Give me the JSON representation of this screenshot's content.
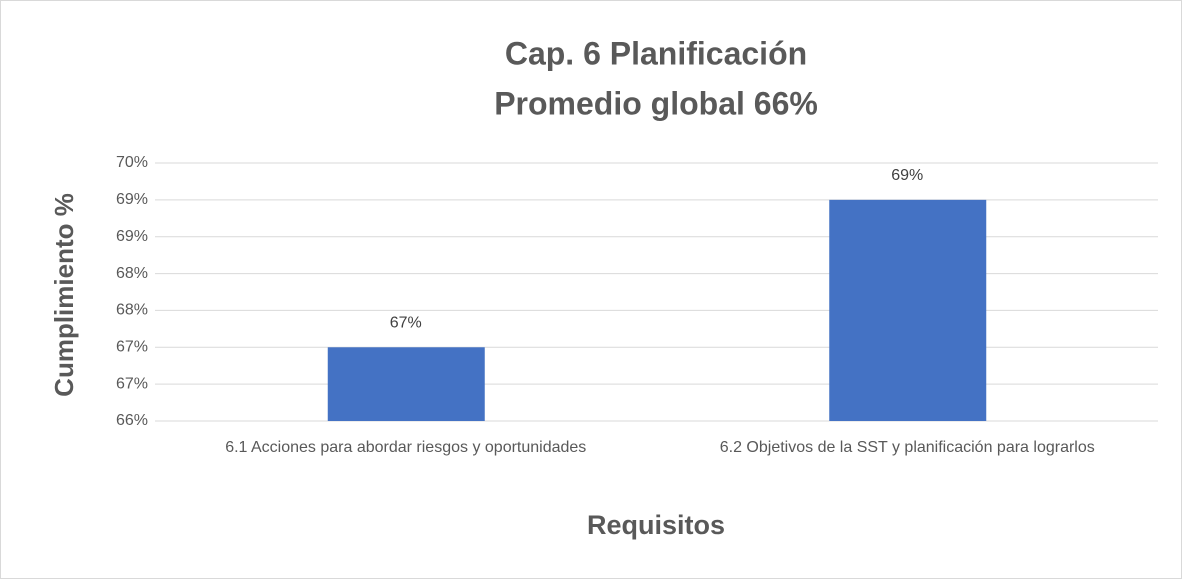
{
  "chart_data": {
    "type": "bar",
    "title": [
      "Cap. 6 Planificación",
      "Promedio global 66%"
    ],
    "x_label": "Requisitos",
    "y_label": "Cumplimiento %",
    "categories": [
      "6.1 Acciones para abordar riesgos y oportunidades",
      "6.2 Objetivos de la SST y planificación para lograrlos"
    ],
    "values": [
      67,
      69
    ],
    "value_labels": [
      "67%",
      "69%"
    ],
    "color": "#4472c4",
    "ylim": [
      66,
      69.5
    ],
    "yticks": [
      {
        "value": 66,
        "label": "66%"
      },
      {
        "value": 66.5,
        "label": "67%"
      },
      {
        "value": 67,
        "label": "67%"
      },
      {
        "value": 67.5,
        "label": "68%"
      },
      {
        "value": 68,
        "label": "68%"
      },
      {
        "value": 68.5,
        "label": "69%"
      },
      {
        "value": 69,
        "label": "69%"
      },
      {
        "value": 69.5,
        "label": "70%"
      }
    ],
    "grid": true
  }
}
